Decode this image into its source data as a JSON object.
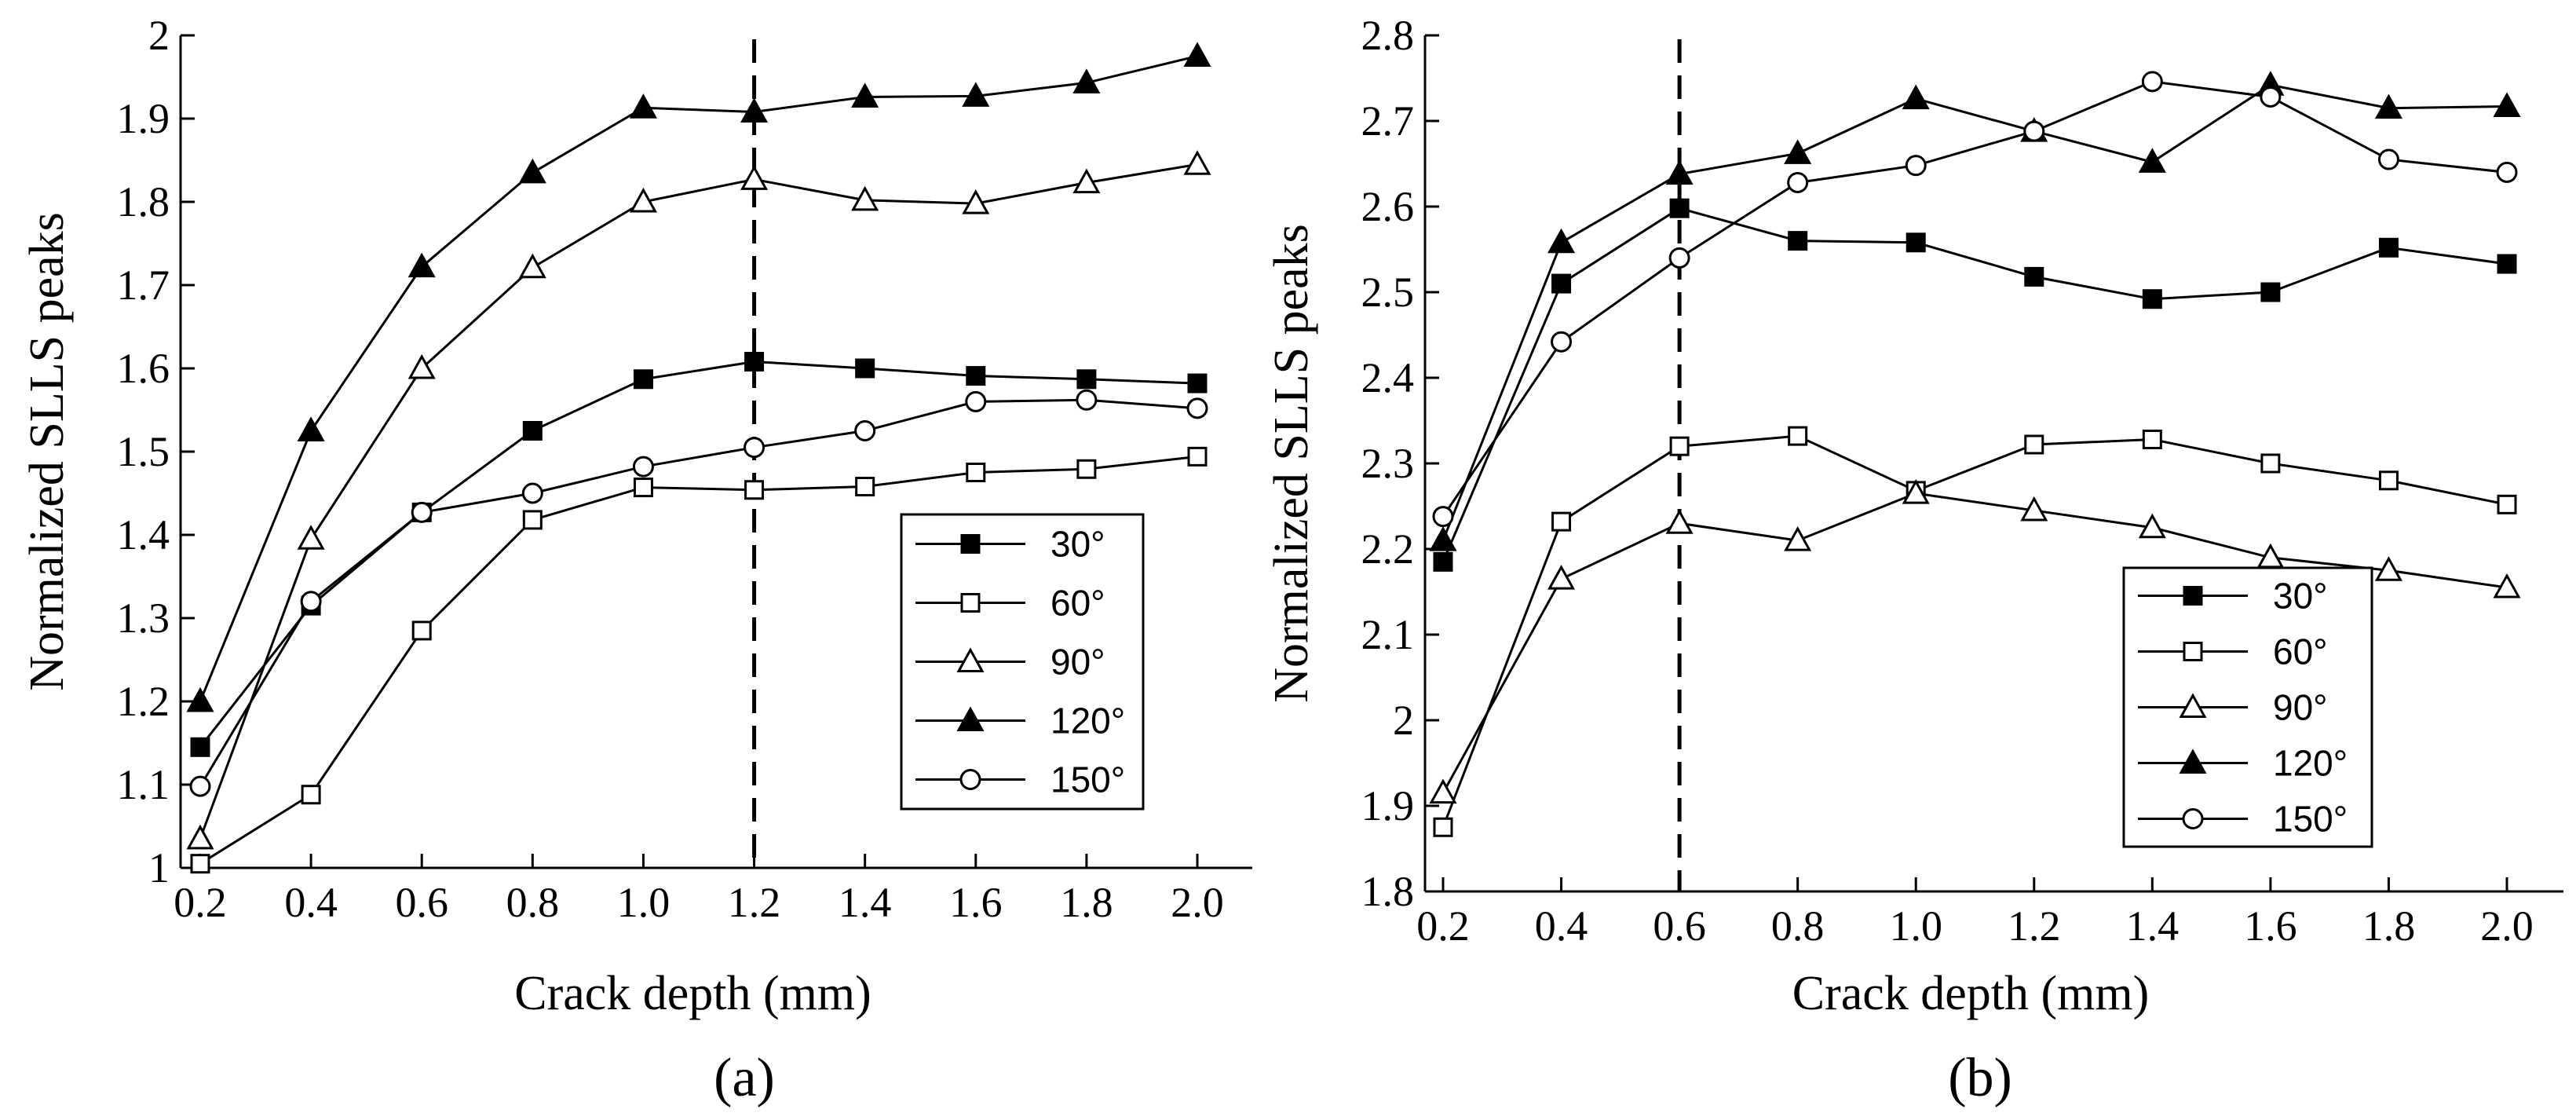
{
  "chart_data": [
    {
      "type": "line",
      "caption": "(a)",
      "xlabel": "Crack depth (mm)",
      "ylabel": "Normalized SLLS peaks",
      "x": [
        0.2,
        0.4,
        0.6,
        0.8,
        1.0,
        1.2,
        1.4,
        1.6,
        1.8,
        2.0
      ],
      "x_tick_labels": [
        "0.2",
        "0.4",
        "0.6",
        "0.8",
        "1.0",
        "1.2",
        "1.4",
        "1.6",
        "1.8",
        "2.0"
      ],
      "ylim": [
        1.0,
        2.0
      ],
      "y_ticks": [
        1.0,
        1.1,
        1.2,
        1.3,
        1.4,
        1.5,
        1.6,
        1.7,
        1.8,
        1.9,
        2.0
      ],
      "y_tick_labels": [
        "1",
        "1.1",
        "1.2",
        "1.3",
        "1.4",
        "1.5",
        "1.6",
        "1.7",
        "1.8",
        "1.9",
        "2"
      ],
      "vline_x": 1.2,
      "legend_position": "right-middle",
      "series": [
        {
          "name": "30°",
          "marker": "square-filled",
          "values": [
            1.145,
            1.315,
            1.427,
            1.525,
            1.587,
            1.608,
            1.6,
            1.591,
            1.587,
            1.582
          ]
        },
        {
          "name": "60°",
          "marker": "square-open",
          "values": [
            1.005,
            1.088,
            1.285,
            1.418,
            1.457,
            1.454,
            1.458,
            1.475,
            1.479,
            1.494
          ]
        },
        {
          "name": "90°",
          "marker": "triangle-open",
          "values": [
            1.035,
            1.395,
            1.6,
            1.721,
            1.8,
            1.827,
            1.802,
            1.798,
            1.823,
            1.845
          ]
        },
        {
          "name": "120°",
          "marker": "triangle-filled",
          "values": [
            1.2,
            1.525,
            1.722,
            1.835,
            1.913,
            1.908,
            1.926,
            1.927,
            1.943,
            1.975
          ]
        },
        {
          "name": "150°",
          "marker": "circle-open",
          "values": [
            1.098,
            1.32,
            1.427,
            1.45,
            1.482,
            1.505,
            1.525,
            1.56,
            1.562,
            1.552
          ]
        }
      ]
    },
    {
      "type": "line",
      "caption": "(b)",
      "xlabel": "Crack depth (mm)",
      "ylabel": "Normalized SLLS peaks",
      "x": [
        0.2,
        0.4,
        0.6,
        0.8,
        1.0,
        1.2,
        1.4,
        1.6,
        1.8,
        2.0
      ],
      "x_tick_labels": [
        "0.2",
        "0.4",
        "0.6",
        "0.8",
        "1.0",
        "1.2",
        "1.4",
        "1.6",
        "1.8",
        "2.0"
      ],
      "ylim": [
        1.8,
        2.8
      ],
      "y_ticks": [
        1.8,
        1.9,
        2.0,
        2.1,
        2.2,
        2.3,
        2.4,
        2.5,
        2.6,
        2.7,
        2.8
      ],
      "y_tick_labels": [
        "1.8",
        "1.9",
        "2",
        "2.1",
        "2.2",
        "2.3",
        "2.4",
        "2.5",
        "2.6",
        "2.7",
        "2.8"
      ],
      "vline_x": 0.6,
      "legend_position": "bottom-right",
      "series": [
        {
          "name": "30°",
          "marker": "square-filled",
          "values": [
            2.185,
            2.51,
            2.598,
            2.56,
            2.558,
            2.518,
            2.492,
            2.5,
            2.552,
            2.533
          ]
        },
        {
          "name": "60°",
          "marker": "square-open",
          "values": [
            1.875,
            2.232,
            2.32,
            2.332,
            2.268,
            2.322,
            2.328,
            2.3,
            2.28,
            2.252
          ]
        },
        {
          "name": "90°",
          "marker": "triangle-open",
          "values": [
            1.915,
            2.165,
            2.23,
            2.21,
            2.265,
            2.245,
            2.225,
            2.19,
            2.175,
            2.155
          ]
        },
        {
          "name": "120°",
          "marker": "triangle-filled",
          "values": [
            2.21,
            2.558,
            2.638,
            2.662,
            2.726,
            2.688,
            2.652,
            2.742,
            2.715,
            2.717
          ]
        },
        {
          "name": "150°",
          "marker": "circle-open",
          "values": [
            2.238,
            2.442,
            2.54,
            2.628,
            2.648,
            2.688,
            2.746,
            2.728,
            2.655,
            2.64
          ]
        }
      ]
    }
  ]
}
